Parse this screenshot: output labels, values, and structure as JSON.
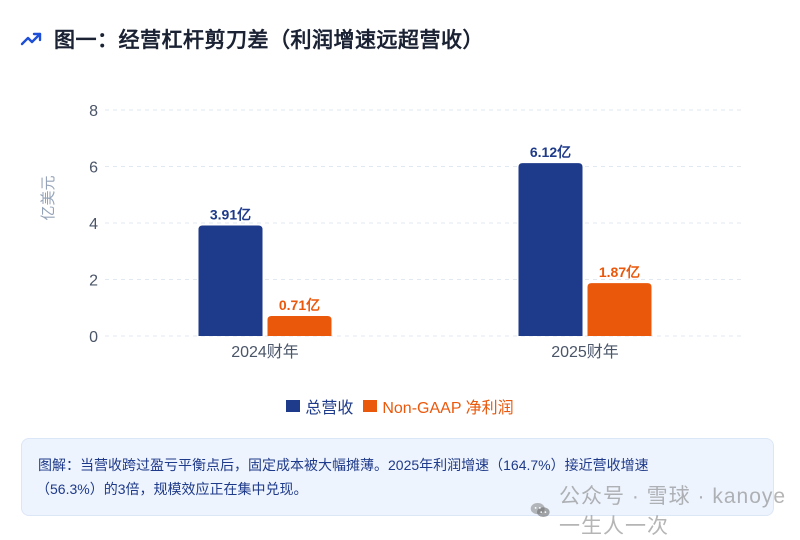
{
  "header": {
    "icon": "trending-up-icon",
    "title": "图一：经营杠杆剪刀差（利润增速远超营收）"
  },
  "colors": {
    "revenue": "#1e3a8a",
    "profit": "#ea580c",
    "accent": "#1d4ed8",
    "grid": "#e2e8f0"
  },
  "chart_data": {
    "type": "bar",
    "title": "图一：经营杠杆剪刀差（利润增速远超营收）",
    "categories": [
      "2024财年",
      "2025财年"
    ],
    "series": [
      {
        "name": "总营收",
        "values": [
          3.91,
          6.12
        ],
        "labels": [
          "3.91亿",
          "6.12亿"
        ],
        "color": "#1e3a8a"
      },
      {
        "name": "Non-GAAP 净利润",
        "values": [
          0.71,
          1.87
        ],
        "labels": [
          "0.71亿",
          "1.87亿"
        ],
        "color": "#ea580c"
      }
    ],
    "xlabel": "",
    "ylabel": "亿美元",
    "ylim": [
      0,
      8
    ],
    "yticks": [
      0,
      2,
      4,
      6,
      8
    ],
    "ytick_labels": [
      "0",
      "2",
      "4",
      "6",
      "8"
    ],
    "grid": true,
    "legend_position": "bottom-center"
  },
  "legend": {
    "items": [
      {
        "label": "总营收",
        "color": "#1e3a8a"
      },
      {
        "label": "Non-GAAP 净利润",
        "color": "#ea580c"
      }
    ]
  },
  "note": {
    "line1": "图解：当营收跨过盈亏平衡点后，固定成本被大幅摊薄。2025年利润增速（164.7%）接近营收增速",
    "line2": "（56.3%）的3倍，规模效应正在集中兑现。"
  },
  "watermark": {
    "icon": "wechat-icon",
    "text": "公众号 · 雪球 · kanoye 一生人一次"
  }
}
